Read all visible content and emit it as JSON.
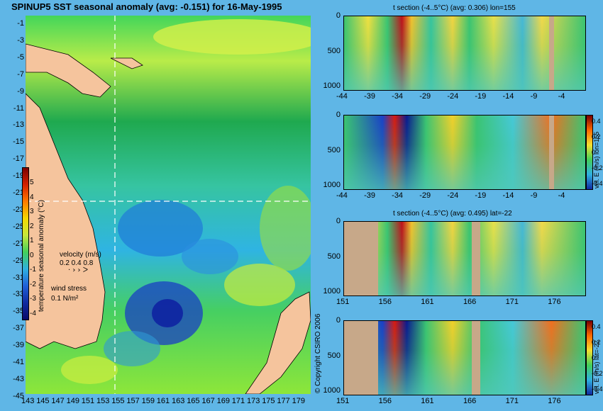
{
  "map": {
    "title": "SPINUP5 SST seasonal anomaly (avg: -0.151) for 16-May-1995",
    "lat_ticks": [
      "-1",
      "-3",
      "-5",
      "-7",
      "-9",
      "-11",
      "-13",
      "-15",
      "-17",
      "-19",
      "-21",
      "-23",
      "-25",
      "-27",
      "-29",
      "-31",
      "-33",
      "-35",
      "-37",
      "-39",
      "-41",
      "-43",
      "-45"
    ],
    "lon_ticks": [
      "143",
      "145",
      "147",
      "149",
      "151",
      "153",
      "155",
      "157",
      "159",
      "161",
      "163",
      "165",
      "167",
      "169",
      "171",
      "173",
      "175",
      "177",
      "179"
    ],
    "colorbar_ticks": [
      "5",
      "4",
      "3",
      "2",
      "1",
      "0",
      "-1",
      "-2",
      "-3",
      "-4"
    ],
    "colorbar_label": "temperature seasonal anomaly (°C)",
    "velocity_label": "velocity (m/s)",
    "velocity_scale": "0.2 0.4 0.8",
    "wind_label": "wind stress",
    "wind_scale": "0.1 N/m²",
    "crosshair": {
      "lon": 155,
      "lat": -22
    }
  },
  "copyright": "© Copyright CSIRO 2006",
  "panels": [
    {
      "title": "t section (-4..5°C) (avg: 0.306) lon=155",
      "y_ticks": [
        "0",
        "500",
        "1000"
      ],
      "x_ticks": [
        "-44",
        "-39",
        "-34",
        "-29",
        "-24",
        "-19",
        "-14",
        "-9",
        "-4"
      ],
      "side_label": "",
      "colorbar_ticks": []
    },
    {
      "title": "",
      "y_ticks": [
        "0",
        "500",
        "1000"
      ],
      "x_ticks": [
        "-44",
        "-39",
        "-34",
        "-29",
        "-24",
        "-19",
        "-14",
        "-9",
        "-4"
      ],
      "side_label": "vel. E (m/s) lon=155",
      "colorbar_ticks": [
        "0.4",
        "0.2",
        "0",
        "-0.2",
        "-0.4"
      ]
    },
    {
      "title": "t section (-4..5°C) (avg: 0.495) lat=-22",
      "y_ticks": [
        "0",
        "500",
        "1000"
      ],
      "x_ticks": [
        "151",
        "156",
        "161",
        "166",
        "171",
        "176"
      ],
      "side_label": "",
      "colorbar_ticks": []
    },
    {
      "title": "",
      "y_ticks": [
        "0",
        "500",
        "1000"
      ],
      "x_ticks": [
        "151",
        "156",
        "161",
        "166",
        "171",
        "176"
      ],
      "side_label": "vel. E (m/s) lat=-22",
      "colorbar_ticks": [
        "0.4",
        "0.2",
        "0",
        "-0.2",
        "-0.4"
      ]
    }
  ],
  "chart_data": [
    {
      "type": "heatmap",
      "title": "SPINUP5 SST seasonal anomaly (avg: -0.151) for 16-May-1995",
      "xlabel": "",
      "ylabel": "",
      "x_range": [
        143,
        179
      ],
      "y_range": [
        -45,
        -1
      ],
      "colorbar": {
        "label": "temperature seasonal anomaly (°C)",
        "range": [
          -4,
          5
        ]
      },
      "mean": -0.151
    },
    {
      "type": "heatmap",
      "title": "t section (-4..5°C) (avg: 0.306) lon=155",
      "x_range": [
        -45,
        -1
      ],
      "depth_range": [
        0,
        1050
      ],
      "mean": 0.306
    },
    {
      "type": "heatmap",
      "title": "",
      "x_range": [
        -45,
        -1
      ],
      "depth_range": [
        0,
        1050
      ],
      "colorbar": {
        "label": "vel. E (m/s) lon=155",
        "range": [
          -0.4,
          0.4
        ]
      }
    },
    {
      "type": "heatmap",
      "title": "t section (-4..5°C) (avg: 0.495) lat=-22",
      "x_range": [
        150,
        180
      ],
      "depth_range": [
        0,
        1050
      ],
      "mean": 0.495
    },
    {
      "type": "heatmap",
      "title": "",
      "x_range": [
        150,
        180
      ],
      "depth_range": [
        0,
        1050
      ],
      "colorbar": {
        "label": "vel. E (m/s) lat=-22",
        "range": [
          -0.4,
          0.4
        ]
      }
    }
  ]
}
